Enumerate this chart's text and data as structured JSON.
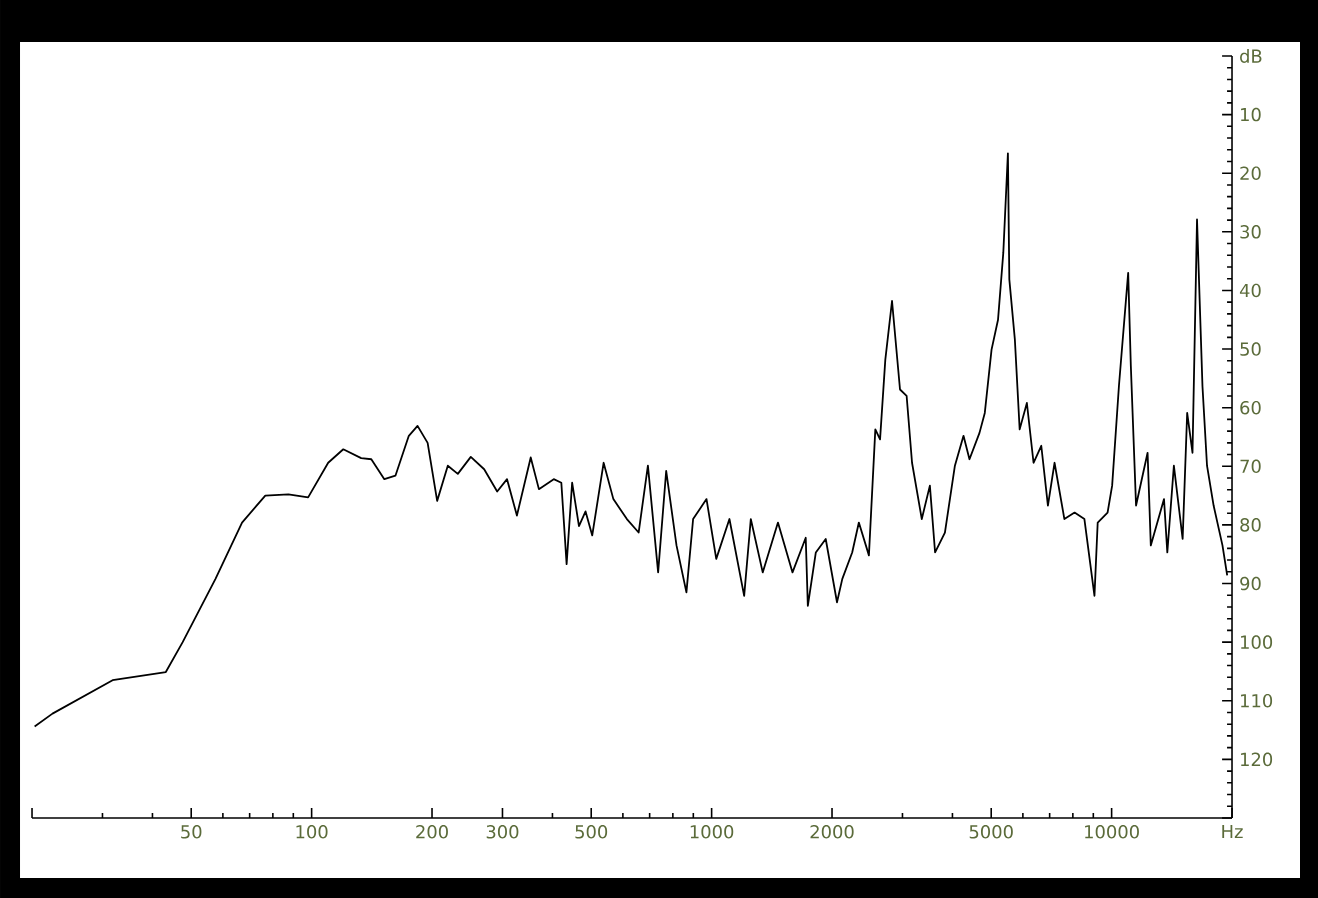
{
  "chart_data": {
    "type": "line",
    "log": "x",
    "xlim": [
      20,
      20000
    ],
    "ylim": [
      130,
      0
    ],
    "xticks": [
      {
        "value": 20,
        "label": null
      },
      50,
      100,
      200,
      300,
      500,
      1000,
      2000,
      5000,
      10000,
      {
        "value": 20000,
        "label": "Hz"
      }
    ],
    "yticks": [
      {
        "value": 0,
        "label": "dB"
      },
      10,
      20,
      30,
      40,
      50,
      60,
      70,
      80,
      90,
      100,
      110,
      120,
      {
        "value": 130,
        "label": null
      }
    ],
    "x": [
      20.3,
      22.5,
      31.8,
      43.2,
      47.6,
      57.5,
      67,
      76.6,
      87.5,
      98,
      110,
      120,
      133,
      141,
      152,
      162,
      175,
      184,
      195,
      206,
      219,
      232,
      250,
      270,
      291,
      308,
      326,
      353,
      370,
      403,
      421,
      434,
      448,
      466,
      484,
      503,
      537,
      568,
      614,
      657,
      693,
      735,
      770,
      817,
      865,
      899,
      971,
      1027,
      1108,
      1206,
      1253,
      1342,
      1465,
      1593,
      1719,
      1740,
      1822,
      1929,
      2058,
      2122,
      2246,
      2334,
      2473,
      2566,
      2637,
      2718,
      2825,
      2958,
      3073,
      3170,
      3353,
      3513,
      3620,
      3831,
      4057,
      4263,
      4412,
      4674,
      4819,
      5010,
      5200,
      5360,
      5505,
      5550,
      5730,
      5890,
      6140,
      6380,
      6670,
      6930,
      7200,
      7620,
      8080,
      8550,
      9060,
      9230,
      9770,
      10030,
      10430,
      11000,
      11170,
      11510,
      12300,
      12530,
      13520,
      13780,
      14310,
      15050,
      15450,
      15930,
      16350,
      16870,
      17320,
      17990,
      18930,
      19450
    ],
    "series": [
      {
        "color": "#000000",
        "values": [
          114.4,
          112.2,
          106.5,
          105.1,
          100,
          89.2,
          79.6,
          75,
          74.8,
          75.3,
          69.4,
          67.1,
          68.6,
          68.8,
          72.2,
          71.6,
          64.8,
          63.1,
          66,
          75.9,
          69.9,
          71.3,
          68.4,
          70.5,
          74.3,
          72.2,
          78.4,
          68.5,
          73.9,
          72.2,
          72.8,
          86.7,
          72.8,
          80.2,
          77.7,
          81.8,
          69.4,
          75.6,
          79,
          81.3,
          69.9,
          88.1,
          70.8,
          83.5,
          91.5,
          79,
          75.6,
          85.8,
          79,
          92.1,
          79,
          88.1,
          79.6,
          88.1,
          82.2,
          93.8,
          84.7,
          82.4,
          93.2,
          89.2,
          84.7,
          79.6,
          85.2,
          63.7,
          65.4,
          51.8,
          41.8,
          56.9,
          58,
          69.4,
          79,
          73.3,
          84.7,
          81.3,
          69.9,
          64.8,
          68.8,
          64.3,
          60.9,
          50.1,
          45,
          33.6,
          16.6,
          38.1,
          48.4,
          63.7,
          59.2,
          69.4,
          66.5,
          76.7,
          69.4,
          79,
          77.9,
          79,
          92.1,
          79.6,
          77.9,
          73.3,
          56.3,
          37,
          52.9,
          76.7,
          67.7,
          83.5,
          75.6,
          84.7,
          69.9,
          82.4,
          60.9,
          67.7,
          27.9,
          56.3,
          69.9,
          76.7,
          83.5,
          88.6
        ]
      }
    ]
  }
}
